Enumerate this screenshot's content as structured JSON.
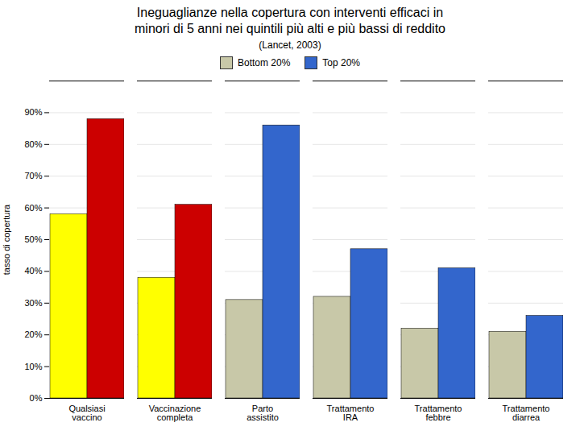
{
  "chart_data": {
    "type": "bar",
    "title": "Ineguaglianze nella copertura con interventi efficaci in\nminori di 5 anni nei quintili più alti e più bassi di reddito",
    "subtitle": "(Lancet, 2003)",
    "categories": [
      "Qualsiasi\nvaccino",
      "Vaccinazione\ncompleta",
      "Parto\nassistito",
      "Trattamento\nIRA",
      "Trattamento\nfebbre",
      "Trattamento\ndiarrea"
    ],
    "series": [
      {
        "name": "Bottom 20%",
        "color": "#C8C8A8",
        "colors": [
          "#FFFF00",
          "#FFFF00",
          "#C8C8A8",
          "#C8C8A8",
          "#C8C8A8",
          "#C8C8A8"
        ],
        "values": [
          58,
          38,
          31,
          32,
          22,
          21
        ]
      },
      {
        "name": "Top 20%",
        "color": "#3366CC",
        "colors": [
          "#CC0000",
          "#CC0000",
          "#3366CC",
          "#3366CC",
          "#3366CC",
          "#3366CC"
        ],
        "values": [
          88,
          61,
          86,
          47,
          41,
          26
        ]
      }
    ],
    "ylabel": "tasso di copertura",
    "ylim": [
      0,
      100
    ],
    "yticks": [
      {
        "value": 0,
        "label": "0%"
      },
      {
        "value": 10,
        "label": "10%"
      },
      {
        "value": 20,
        "label": "20%"
      },
      {
        "value": 30,
        "label": "30%"
      },
      {
        "value": 40,
        "label": "40%"
      },
      {
        "value": 50,
        "label": "50%"
      },
      {
        "value": 60,
        "label": "60%"
      },
      {
        "value": 70,
        "label": "70%"
      },
      {
        "value": 80,
        "label": "80%"
      },
      {
        "value": 90,
        "label": "90%"
      }
    ],
    "grid": true,
    "legend": "top"
  }
}
